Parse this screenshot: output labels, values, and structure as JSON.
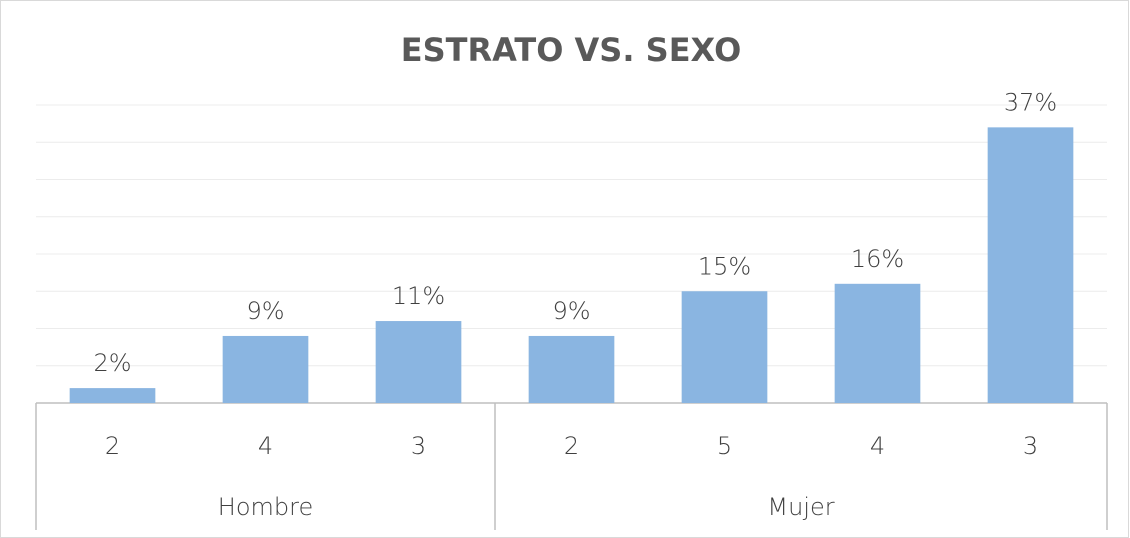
{
  "chart_data": {
    "type": "bar",
    "title": "ESTRATO VS. SEXO",
    "groups": [
      {
        "name": "Hombre",
        "categories": [
          "2",
          "4",
          "3"
        ],
        "values": [
          2,
          9,
          11
        ],
        "value_labels": [
          "2%",
          "9%",
          "11%"
        ]
      },
      {
        "name": "Mujer",
        "categories": [
          "2",
          "5",
          "4",
          "3"
        ],
        "values": [
          9,
          15,
          16,
          37
        ],
        "value_labels": [
          "9%",
          "15%",
          "16%",
          "37%"
        ]
      }
    ],
    "color": "#8ab5e1",
    "ylim": [
      0,
      40
    ],
    "yticks": [
      0,
      5,
      10,
      15,
      20,
      25,
      30,
      35,
      40
    ],
    "grid": true
  }
}
